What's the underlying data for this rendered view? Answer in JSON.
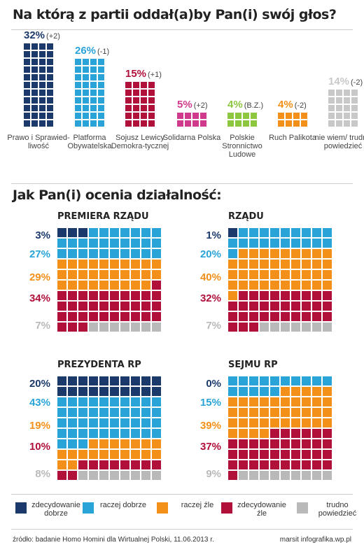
{
  "title1": "Na którą z partii oddał(a)by Pan(i) swój głos?",
  "title2": "Jak Pan(i) ocenia działalność:",
  "colors": {
    "navy": "#1b3a6b",
    "blue": "#29a3d8",
    "orange": "#f39019",
    "red": "#b0103a",
    "gray": "#b9b9b9",
    "pink": "#d03a8c",
    "green": "#8dc63f",
    "lightgray": "#c8c8c8"
  },
  "chart_data": [
    {
      "type": "bar",
      "title": "Na którą z partii oddał(a)by Pan(i) swój głos?",
      "categories": [
        "Prawo i Sprawiedliwość",
        "Platforma Obywatelska",
        "Sojusz Lewicy Demokratycznej",
        "Solidarna Polska",
        "Polskie Stronnictwo Ludowe",
        "Ruch Palikota",
        "nie wiem/ trudno powiedzieć"
      ],
      "series": [
        {
          "values": [
            32,
            26,
            15,
            5,
            4,
            4,
            14
          ]
        }
      ],
      "parties": [
        {
          "label": "Prawo i Sprawied-liwość",
          "pct": "32%",
          "change": "(+2)",
          "value": 32,
          "color": "#1b3a6b"
        },
        {
          "label": "Platforma Obywatelska",
          "pct": "26%",
          "change": "(-1)",
          "value": 26,
          "color": "#29a3d8"
        },
        {
          "label": "Sojusz Lewicy Demokra-tycznej",
          "pct": "15%",
          "change": "(+1)",
          "value": 15,
          "color": "#b0103a"
        },
        {
          "label": "Solidarna Polska",
          "pct": "5%",
          "change": "(+2)",
          "value": 5,
          "color": "#d03a8c"
        },
        {
          "label": "Polskie Stronnictwo Ludowe",
          "pct": "4%",
          "change": "(B.Z.)",
          "value": 4,
          "color": "#8dc63f"
        },
        {
          "label": "Ruch Palikota",
          "pct": "4%",
          "change": "(-2)",
          "value": 4,
          "color": "#f39019"
        },
        {
          "label": "nie wiem/ trudno powiedzieć",
          "pct": "14%",
          "change": "(-2)",
          "value": 14,
          "color": "#c8c8c8"
        }
      ]
    },
    {
      "type": "waffle",
      "title": "PREMIERA RZĄDU",
      "rows": [
        {
          "label": "3%",
          "value": 3,
          "key": "zdecydowanie dobrze"
        },
        {
          "label": "27%",
          "value": 27,
          "key": "raczej dobrze"
        },
        {
          "label": "29%",
          "value": 29,
          "key": "raczej źle"
        },
        {
          "label": "34%",
          "value": 34,
          "key": "zdecydowanie źle"
        },
        {
          "label": "7%",
          "value": 7,
          "key": "trudno powiedzieć"
        }
      ]
    },
    {
      "type": "waffle",
      "title": "RZĄDU",
      "rows": [
        {
          "label": "1%",
          "value": 1,
          "key": "zdecydowanie dobrze"
        },
        {
          "label": "20%",
          "value": 20,
          "key": "raczej dobrze"
        },
        {
          "label": "40%",
          "value": 40,
          "key": "raczej źle"
        },
        {
          "label": "32%",
          "value": 32,
          "key": "zdecydowanie źle"
        },
        {
          "label": "7%",
          "value": 7,
          "key": "trudno powiedzieć"
        }
      ]
    },
    {
      "type": "waffle",
      "title": "PREZYDENTA RP",
      "rows": [
        {
          "label": "20%",
          "value": 20,
          "key": "zdecydowanie dobrze"
        },
        {
          "label": "43%",
          "value": 43,
          "key": "raczej dobrze"
        },
        {
          "label": "19%",
          "value": 19,
          "key": "raczej źle"
        },
        {
          "label": "10%",
          "value": 10,
          "key": "zdecydowanie źle"
        },
        {
          "label": "8%",
          "value": 8,
          "key": "trudno powiedzieć"
        }
      ]
    },
    {
      "type": "waffle",
      "title": "SEJMU RP",
      "rows": [
        {
          "label": "0%",
          "value": 0,
          "key": "zdecydowanie dobrze"
        },
        {
          "label": "15%",
          "value": 15,
          "key": "raczej dobrze"
        },
        {
          "label": "39%",
          "value": 39,
          "key": "raczej źle"
        },
        {
          "label": "37%",
          "value": 37,
          "key": "zdecydowanie źle"
        },
        {
          "label": "9%",
          "value": 9,
          "key": "trudno powiedzieć"
        }
      ]
    }
  ],
  "legend": [
    {
      "label": "zdecydowanie dobrze",
      "color": "#1b3a6b"
    },
    {
      "label": "raczej dobrze",
      "color": "#29a3d8"
    },
    {
      "label": "raczej źle",
      "color": "#f39019"
    },
    {
      "label": "zdecydowanie źle",
      "color": "#b0103a"
    },
    {
      "label": "trudno powiedzieć",
      "color": "#b9b9b9"
    }
  ],
  "footer": {
    "source": "źródło: badanie Homo Homini dla Wirtualnej Polski, 11.06.2013 r.",
    "credit": "marsit infografika.wp.pl"
  }
}
